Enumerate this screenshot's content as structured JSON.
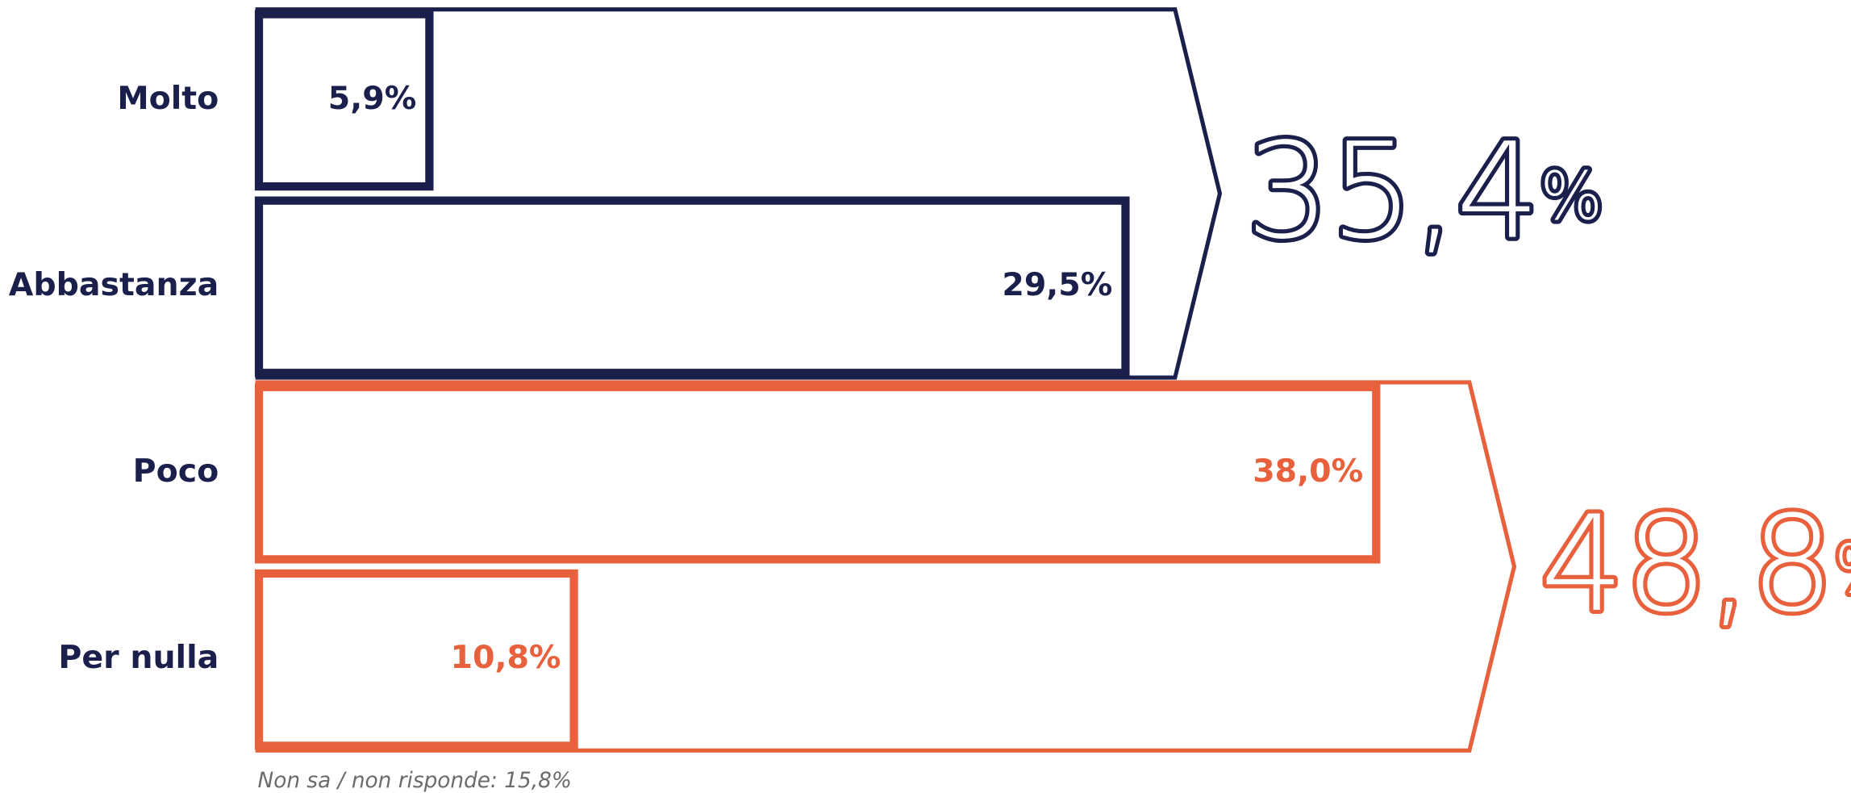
{
  "chart_data": {
    "type": "bar",
    "orientation": "horizontal",
    "categories": [
      "Molto",
      "Abbastanza",
      "Poco",
      "Per nulla"
    ],
    "values": [
      5.9,
      29.5,
      38.0,
      10.8
    ],
    "value_labels": [
      "5,9%",
      "29,5%",
      "38,0%",
      "10,8%"
    ],
    "colors": [
      "#1b1f4b",
      "#1b1f4b",
      "#e8603c",
      "#e8603c"
    ],
    "groups": [
      {
        "categories": [
          "Molto",
          "Abbastanza"
        ],
        "value": 35.4,
        "label": "35,4",
        "suffix": "%",
        "color": "#1b1f4b"
      },
      {
        "categories": [
          "Poco",
          "Per nulla"
        ],
        "value": 48.8,
        "label": "48,8",
        "suffix": "%",
        "color": "#e8603c"
      }
    ],
    "note": "Non sa / non risponde: 15,8%"
  }
}
